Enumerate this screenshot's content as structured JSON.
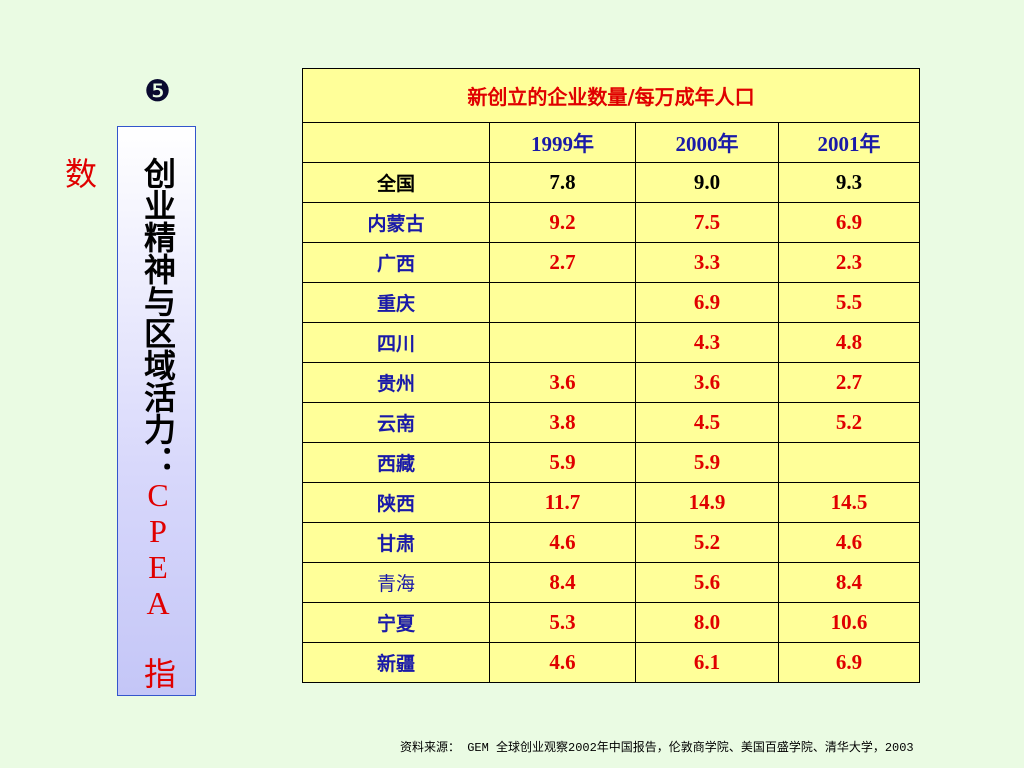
{
  "bullet": "❺",
  "side_title": {
    "main": "创业精神与区域活力：",
    "sub": "CPEA 指数"
  },
  "table": {
    "title": "新创立的企业数量/每万成年人口",
    "columns": [
      "1999年",
      "2000年",
      "2001年"
    ],
    "rows": [
      [
        "全国",
        "7.8",
        "9.0",
        "9.3"
      ],
      [
        "内蒙古",
        "9.2",
        "7.5",
        "6.9"
      ],
      [
        "广西",
        "2.7",
        "3.3",
        "2.3"
      ],
      [
        "重庆",
        null,
        "6.9",
        "5.5"
      ],
      [
        "四川",
        null,
        "4.3",
        "4.8"
      ],
      [
        "贵州",
        "3.6",
        "3.6",
        "2.7"
      ],
      [
        "云南",
        "3.8",
        "4.5",
        "5.2"
      ],
      [
        "西藏",
        "5.9",
        "5.9",
        null
      ],
      [
        "陕西",
        "11.7",
        "14.9",
        "14.5"
      ],
      [
        "甘肃",
        "4.6",
        "5.2",
        "4.6"
      ],
      [
        "青海",
        "8.4",
        "5.6",
        "8.4"
      ],
      [
        "宁夏",
        "5.3",
        "8.0",
        "10.6"
      ],
      [
        "新疆",
        "4.6",
        "6.1",
        "6.9"
      ]
    ]
  },
  "source": "资料来源：  GEM 全球创业观察2002年中国报告，伦敦商学院、美国百盛学院、清华大学，2003"
}
